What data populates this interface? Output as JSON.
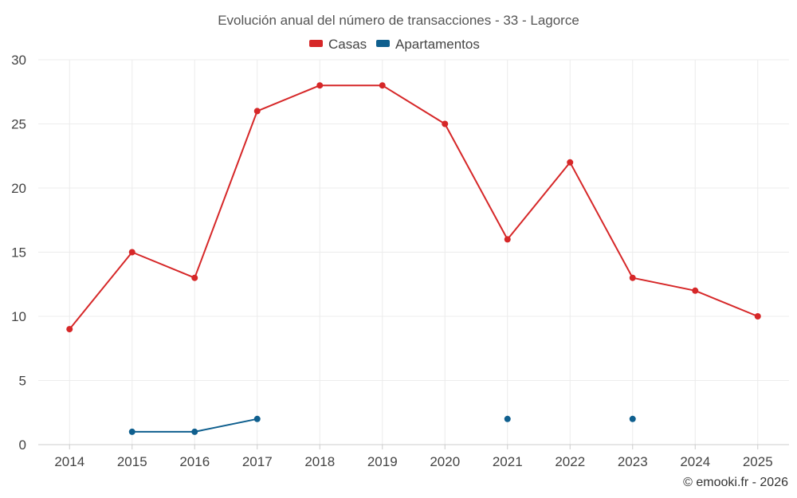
{
  "chart_data": {
    "type": "line",
    "title": "Evolución anual del número de transacciones - 33 - Lagorce",
    "x": [
      "2014",
      "2015",
      "2016",
      "2017",
      "2018",
      "2019",
      "2020",
      "2021",
      "2022",
      "2023",
      "2024",
      "2025"
    ],
    "ylim": [
      0,
      30
    ],
    "yticks": [
      "0",
      "5",
      "10",
      "15",
      "20",
      "25",
      "30"
    ],
    "ytick_values": [
      0,
      5,
      10,
      15,
      20,
      25,
      30
    ],
    "grid": true,
    "legend_position": "top-center",
    "series": [
      {
        "name": "Casas",
        "color": "#d62728",
        "values": [
          9,
          15,
          13,
          26,
          28,
          28,
          25,
          16,
          22,
          13,
          12,
          10
        ]
      },
      {
        "name": "Apartamentos",
        "color": "#0f5f8e",
        "values": [
          null,
          1,
          1,
          2,
          null,
          null,
          null,
          2,
          null,
          2,
          null,
          null
        ]
      }
    ],
    "credit": "© emooki.fr - 2026"
  }
}
